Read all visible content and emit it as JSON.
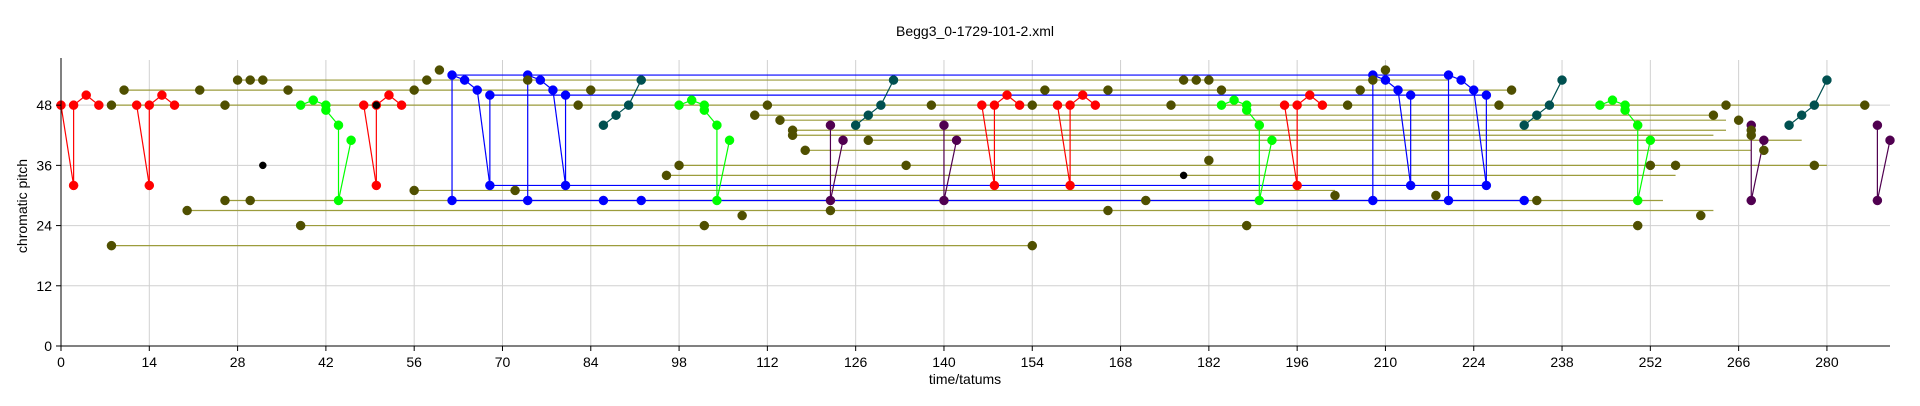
{
  "chart_data": {
    "type": "scatter",
    "title": "Begg3_0-1729-101-2.xml",
    "xlabel": "time/tatums",
    "ylabel": "chromatic pitch",
    "xlim": [
      0,
      290
    ],
    "ylim": [
      0,
      57
    ],
    "x_ticks": [
      0,
      14,
      28,
      42,
      56,
      70,
      84,
      98,
      112,
      126,
      140,
      154,
      168,
      182,
      196,
      210,
      224,
      238,
      252,
      266,
      280
    ],
    "y_ticks": [
      0,
      12,
      24,
      36,
      48
    ],
    "grid": true,
    "colors": {
      "red": "#ff0000",
      "blue": "#0000ff",
      "green": "#00ff00",
      "olive": "#4f4f00",
      "olive_line": "#9c9c3c",
      "teal": "#005050",
      "purple": "#500050",
      "black": "#000000",
      "grid": "#d0d0d0"
    },
    "series": [
      {
        "color": "red",
        "line": "red",
        "points": [
          [
            0,
            48
          ],
          [
            2,
            32
          ],
          [
            2,
            48
          ],
          [
            4,
            50
          ],
          [
            6,
            48
          ],
          [
            12,
            48
          ],
          [
            14,
            32
          ],
          [
            14,
            48
          ],
          [
            16,
            50
          ],
          [
            18,
            48
          ],
          [
            48,
            48
          ],
          [
            50,
            32
          ],
          [
            50,
            48
          ],
          [
            52,
            50
          ],
          [
            54,
            48
          ],
          [
            146,
            48
          ],
          [
            148,
            32
          ],
          [
            148,
            48
          ],
          [
            150,
            50
          ],
          [
            152,
            48
          ],
          [
            158,
            48
          ],
          [
            160,
            32
          ],
          [
            160,
            48
          ],
          [
            162,
            50
          ],
          [
            164,
            48
          ],
          [
            194,
            48
          ],
          [
            196,
            32
          ],
          [
            196,
            48
          ],
          [
            198,
            50
          ],
          [
            200,
            48
          ]
        ]
      },
      {
        "color": "blue",
        "line": "blue",
        "points": [
          [
            62,
            29
          ],
          [
            62,
            54
          ],
          [
            64,
            53
          ],
          [
            66,
            51
          ],
          [
            68,
            32
          ],
          [
            68,
            50
          ],
          [
            74,
            29
          ],
          [
            74,
            54
          ],
          [
            76,
            53
          ],
          [
            78,
            51
          ],
          [
            80,
            32
          ],
          [
            80,
            50
          ],
          [
            86,
            29
          ],
          [
            92,
            29
          ],
          [
            208,
            29
          ],
          [
            208,
            54
          ],
          [
            210,
            53
          ],
          [
            212,
            51
          ],
          [
            214,
            32
          ],
          [
            214,
            50
          ],
          [
            220,
            29
          ],
          [
            220,
            54
          ],
          [
            222,
            53
          ],
          [
            224,
            51
          ],
          [
            226,
            32
          ],
          [
            226,
            50
          ],
          [
            232,
            29
          ]
        ]
      },
      {
        "color": "green",
        "line": "green",
        "points": [
          [
            38,
            48
          ],
          [
            40,
            49
          ],
          [
            42,
            48
          ],
          [
            42,
            47
          ],
          [
            44,
            44
          ],
          [
            44,
            29
          ],
          [
            46,
            41
          ],
          [
            98,
            48
          ],
          [
            100,
            49
          ],
          [
            102,
            48
          ],
          [
            102,
            47
          ],
          [
            104,
            44
          ],
          [
            104,
            29
          ],
          [
            106,
            41
          ],
          [
            184,
            48
          ],
          [
            186,
            49
          ],
          [
            188,
            48
          ],
          [
            188,
            47
          ],
          [
            190,
            44
          ],
          [
            190,
            29
          ],
          [
            192,
            41
          ],
          [
            244,
            48
          ],
          [
            246,
            49
          ],
          [
            248,
            48
          ],
          [
            248,
            47
          ],
          [
            250,
            44
          ],
          [
            250,
            29
          ],
          [
            252,
            41
          ]
        ]
      },
      {
        "color": "teal",
        "line": "teal",
        "points": [
          [
            86,
            44
          ],
          [
            88,
            46
          ],
          [
            90,
            48
          ],
          [
            92,
            53
          ],
          [
            126,
            44
          ],
          [
            128,
            46
          ],
          [
            130,
            48
          ],
          [
            132,
            53
          ],
          [
            232,
            44
          ],
          [
            234,
            46
          ],
          [
            236,
            48
          ],
          [
            238,
            53
          ],
          [
            274,
            44
          ],
          [
            276,
            46
          ],
          [
            278,
            48
          ],
          [
            280,
            53
          ]
        ]
      },
      {
        "color": "purple",
        "line": "purple",
        "points": [
          [
            122,
            44
          ],
          [
            122,
            29
          ],
          [
            124,
            41
          ],
          [
            140,
            44
          ],
          [
            140,
            29
          ],
          [
            142,
            41
          ],
          [
            268,
            44
          ],
          [
            268,
            29
          ],
          [
            270,
            41
          ],
          [
            288,
            44
          ],
          [
            288,
            29
          ],
          [
            290,
            41
          ]
        ]
      },
      {
        "color": "olive",
        "line": "none",
        "points": [
          [
            8,
            20
          ],
          [
            154,
            20
          ],
          [
            8,
            48
          ],
          [
            10,
            51
          ],
          [
            20,
            27
          ],
          [
            22,
            51
          ],
          [
            26,
            29
          ],
          [
            26,
            48
          ],
          [
            28,
            53
          ],
          [
            30,
            53
          ],
          [
            30,
            29
          ],
          [
            32,
            53
          ],
          [
            36,
            51
          ],
          [
            38,
            24
          ],
          [
            56,
            31
          ],
          [
            56,
            51
          ],
          [
            58,
            53
          ],
          [
            60,
            55
          ],
          [
            72,
            31
          ],
          [
            74,
            53
          ],
          [
            82,
            48
          ],
          [
            84,
            51
          ],
          [
            96,
            34
          ],
          [
            98,
            36
          ],
          [
            102,
            24
          ],
          [
            108,
            26
          ],
          [
            110,
            46
          ],
          [
            112,
            48
          ],
          [
            114,
            45
          ],
          [
            116,
            43
          ],
          [
            116,
            42
          ],
          [
            118,
            39
          ],
          [
            122,
            27
          ],
          [
            128,
            41
          ],
          [
            134,
            36
          ],
          [
            138,
            48
          ],
          [
            154,
            48
          ],
          [
            156,
            51
          ],
          [
            166,
            51
          ],
          [
            172,
            29
          ],
          [
            176,
            48
          ],
          [
            178,
            53
          ],
          [
            180,
            53
          ],
          [
            182,
            53
          ],
          [
            184,
            51
          ],
          [
            188,
            24
          ],
          [
            202,
            30
          ],
          [
            204,
            48
          ],
          [
            206,
            51
          ],
          [
            208,
            53
          ],
          [
            210,
            55
          ],
          [
            218,
            30
          ],
          [
            228,
            48
          ],
          [
            230,
            51
          ],
          [
            234,
            29
          ],
          [
            250,
            24
          ],
          [
            252,
            36
          ],
          [
            256,
            36
          ],
          [
            260,
            26
          ],
          [
            262,
            46
          ],
          [
            264,
            48
          ],
          [
            266,
            45
          ],
          [
            268,
            43
          ],
          [
            268,
            42
          ],
          [
            270,
            39
          ],
          [
            278,
            36
          ],
          [
            286,
            48
          ],
          [
            166,
            27
          ],
          [
            182,
            37
          ]
        ]
      },
      {
        "color": "black",
        "line": "none",
        "points": [
          [
            32,
            36
          ],
          [
            50,
            48
          ],
          [
            178,
            34
          ]
        ]
      }
    ],
    "sustain_lines": [
      {
        "color": "olive_line",
        "x0": 8,
        "x1": 154,
        "y": 20
      },
      {
        "color": "olive_line",
        "x0": 38,
        "x1": 250,
        "y": 24
      },
      {
        "color": "olive_line",
        "x0": 20,
        "x1": 262,
        "y": 27
      },
      {
        "color": "olive_line",
        "x0": 26,
        "x1": 254,
        "y": 29
      },
      {
        "color": "olive_line",
        "x0": 56,
        "x1": 202,
        "y": 31
      },
      {
        "color": "olive_line",
        "x0": 96,
        "x1": 256,
        "y": 34
      },
      {
        "color": "olive_line",
        "x0": 98,
        "x1": 280,
        "y": 36
      },
      {
        "color": "olive_line",
        "x0": 118,
        "x1": 268,
        "y": 39
      },
      {
        "color": "olive_line",
        "x0": 128,
        "x1": 276,
        "y": 41
      },
      {
        "color": "olive_line",
        "x0": 116,
        "x1": 262,
        "y": 42
      },
      {
        "color": "olive_line",
        "x0": 116,
        "x1": 264,
        "y": 43
      },
      {
        "color": "olive_line",
        "x0": 114,
        "x1": 264,
        "y": 45
      },
      {
        "color": "olive_line",
        "x0": 110,
        "x1": 262,
        "y": 46
      },
      {
        "color": "olive_line",
        "x0": 8,
        "x1": 286,
        "y": 48
      },
      {
        "color": "olive_line",
        "x0": 10,
        "x1": 230,
        "y": 51
      },
      {
        "color": "olive_line",
        "x0": 28,
        "x1": 220,
        "y": 53
      },
      {
        "color": "blue",
        "x0": 62,
        "x1": 232,
        "y": 29
      },
      {
        "color": "blue",
        "x0": 68,
        "x1": 226,
        "y": 32
      },
      {
        "color": "blue",
        "x0": 62,
        "x1": 220,
        "y": 54
      },
      {
        "color": "blue",
        "x0": 68,
        "x1": 226,
        "y": 50
      }
    ]
  }
}
